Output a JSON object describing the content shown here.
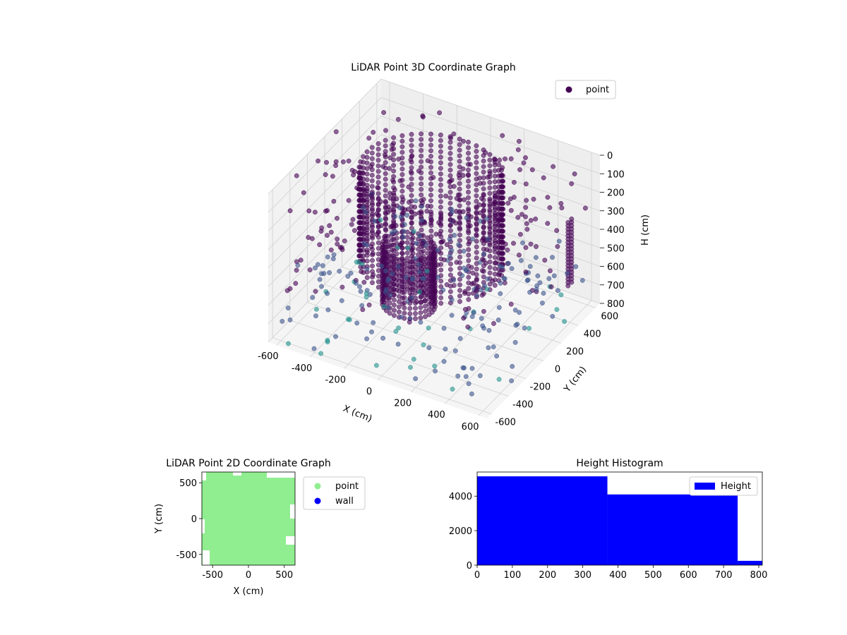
{
  "colors": {
    "viridis_dark": "#440154",
    "viridis_mid": "#3b528b",
    "viridis_teal": "#21918c",
    "point_green": "#90ee90",
    "wall_blue": "#0000ff",
    "hist_blue": "#0000ff"
  },
  "chart_data": [
    {
      "type": "scatter",
      "title": "LiDAR Point 3D Coordinate Graph",
      "xlabel": "X (cm)",
      "ylabel": "Y (cm)",
      "zlabel": "H (cm)",
      "x_ticks": [
        -600,
        -400,
        -200,
        0,
        200,
        400,
        600
      ],
      "y_ticks": [
        -600,
        -400,
        -200,
        0,
        200,
        400,
        600
      ],
      "z_ticks": [
        0,
        100,
        200,
        300,
        400,
        500,
        600,
        700,
        800
      ],
      "xlim": [
        -650,
        650
      ],
      "ylim": [
        -650,
        650
      ],
      "zlim": [
        0,
        800
      ],
      "z_inverted": true,
      "legend": {
        "placement": "top-right",
        "entries": [
          {
            "name": "point",
            "color": "#440154"
          }
        ]
      },
      "grid": true
    },
    {
      "type": "scatter",
      "title": "LiDAR Point 2D Coordinate Graph",
      "xlabel": "X (cm)",
      "ylabel": "Y (cm)",
      "xlim": [
        -650,
        650
      ],
      "ylim": [
        -650,
        650
      ],
      "x_ticks": [
        -500,
        0,
        500
      ],
      "y_ticks": [
        -500,
        0,
        500
      ],
      "legend": {
        "placement": "outside-right",
        "entries": [
          {
            "name": "point",
            "color": "#90ee90"
          },
          {
            "name": "wall",
            "color": "#0000ff"
          }
        ]
      }
    },
    {
      "type": "bar",
      "title": "Height Histogram",
      "bins": [
        [
          0,
          370
        ],
        [
          370,
          740
        ],
        [
          740,
          810
        ]
      ],
      "values": [
        5150,
        4100,
        250
      ],
      "x_ticks": [
        0,
        100,
        200,
        300,
        400,
        500,
        600,
        700,
        800
      ],
      "y_ticks": [
        0,
        2000,
        4000
      ],
      "xlim": [
        0,
        810
      ],
      "ylim": [
        0,
        5400
      ],
      "legend": {
        "placement": "top-right",
        "entries": [
          {
            "name": "Height",
            "color": "#0000ff"
          }
        ]
      }
    }
  ]
}
